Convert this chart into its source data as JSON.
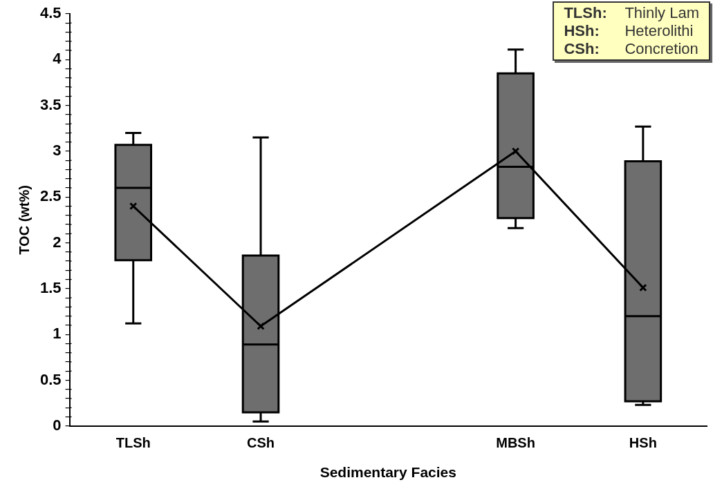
{
  "chart_data": {
    "type": "box",
    "xlabel": "Sedimentary Facies",
    "ylabel": "TOC (wt%)",
    "categories": [
      "TLSh",
      "CSh",
      null,
      "MBSh",
      "HSh"
    ],
    "boxes": [
      {
        "low": 1.12,
        "q1": 1.81,
        "median": 2.6,
        "q3": 3.07,
        "high": 3.2
      },
      {
        "low": 0.05,
        "q1": 0.15,
        "median": 0.89,
        "q3": 1.86,
        "high": 3.15
      },
      null,
      {
        "low": 2.16,
        "q1": 2.27,
        "median": 2.83,
        "q3": 3.85,
        "high": 4.11
      },
      {
        "low": 0.23,
        "q1": 0.27,
        "median": 1.2,
        "q3": 2.89,
        "high": 3.27
      }
    ],
    "color": "#6e6e6e",
    "series": [
      {
        "type": "line",
        "color": "#000000",
        "marker": "cross",
        "values": [
          2.4,
          1.09,
          null,
          3.0,
          1.51
        ]
      }
    ],
    "ylim": [
      0,
      4.5
    ],
    "yticks": [
      0,
      {
        "value": 0.1,
        "label": null
      },
      {
        "value": 0.2,
        "label": null
      },
      {
        "value": 0.3,
        "label": null
      },
      {
        "value": 0.4,
        "label": null
      },
      0.5,
      {
        "value": 0.6,
        "label": null
      },
      {
        "value": 0.7,
        "label": null
      },
      {
        "value": 0.8,
        "label": null
      },
      {
        "value": 0.9,
        "label": null
      },
      1,
      {
        "value": 1.1,
        "label": null
      },
      {
        "value": 1.2,
        "label": null
      },
      {
        "value": 1.3,
        "label": null
      },
      {
        "value": 1.4,
        "label": null
      },
      1.5,
      {
        "value": 1.6,
        "label": null
      },
      {
        "value": 1.7,
        "label": null
      },
      {
        "value": 1.8,
        "label": null
      },
      {
        "value": 1.9,
        "label": null
      },
      2,
      {
        "value": 2.1,
        "label": null
      },
      {
        "value": 2.2,
        "label": null
      },
      {
        "value": 2.3,
        "label": null
      },
      {
        "value": 2.4,
        "label": null
      },
      2.5,
      {
        "value": 2.6,
        "label": null
      },
      {
        "value": 2.7,
        "label": null
      },
      {
        "value": 2.8,
        "label": null
      },
      {
        "value": 2.9,
        "label": null
      },
      3,
      {
        "value": 3.1,
        "label": null
      },
      {
        "value": 3.2,
        "label": null
      },
      {
        "value": 3.3,
        "label": null
      },
      {
        "value": 3.4,
        "label": null
      },
      3.5,
      {
        "value": 3.6,
        "label": null
      },
      {
        "value": 3.7,
        "label": null
      },
      {
        "value": 3.8,
        "label": null
      },
      {
        "value": 3.9,
        "label": null
      },
      4,
      {
        "value": 4.1,
        "label": null
      },
      {
        "value": 4.2,
        "label": null
      },
      {
        "value": 4.3,
        "label": null
      },
      {
        "value": 4.4,
        "label": null
      },
      4.5
    ],
    "grid": false,
    "legend": false,
    "annotations": [
      "TLSh: Thinly Lam",
      "HSh: Heterolithi",
      "CSh: Concretion"
    ]
  }
}
